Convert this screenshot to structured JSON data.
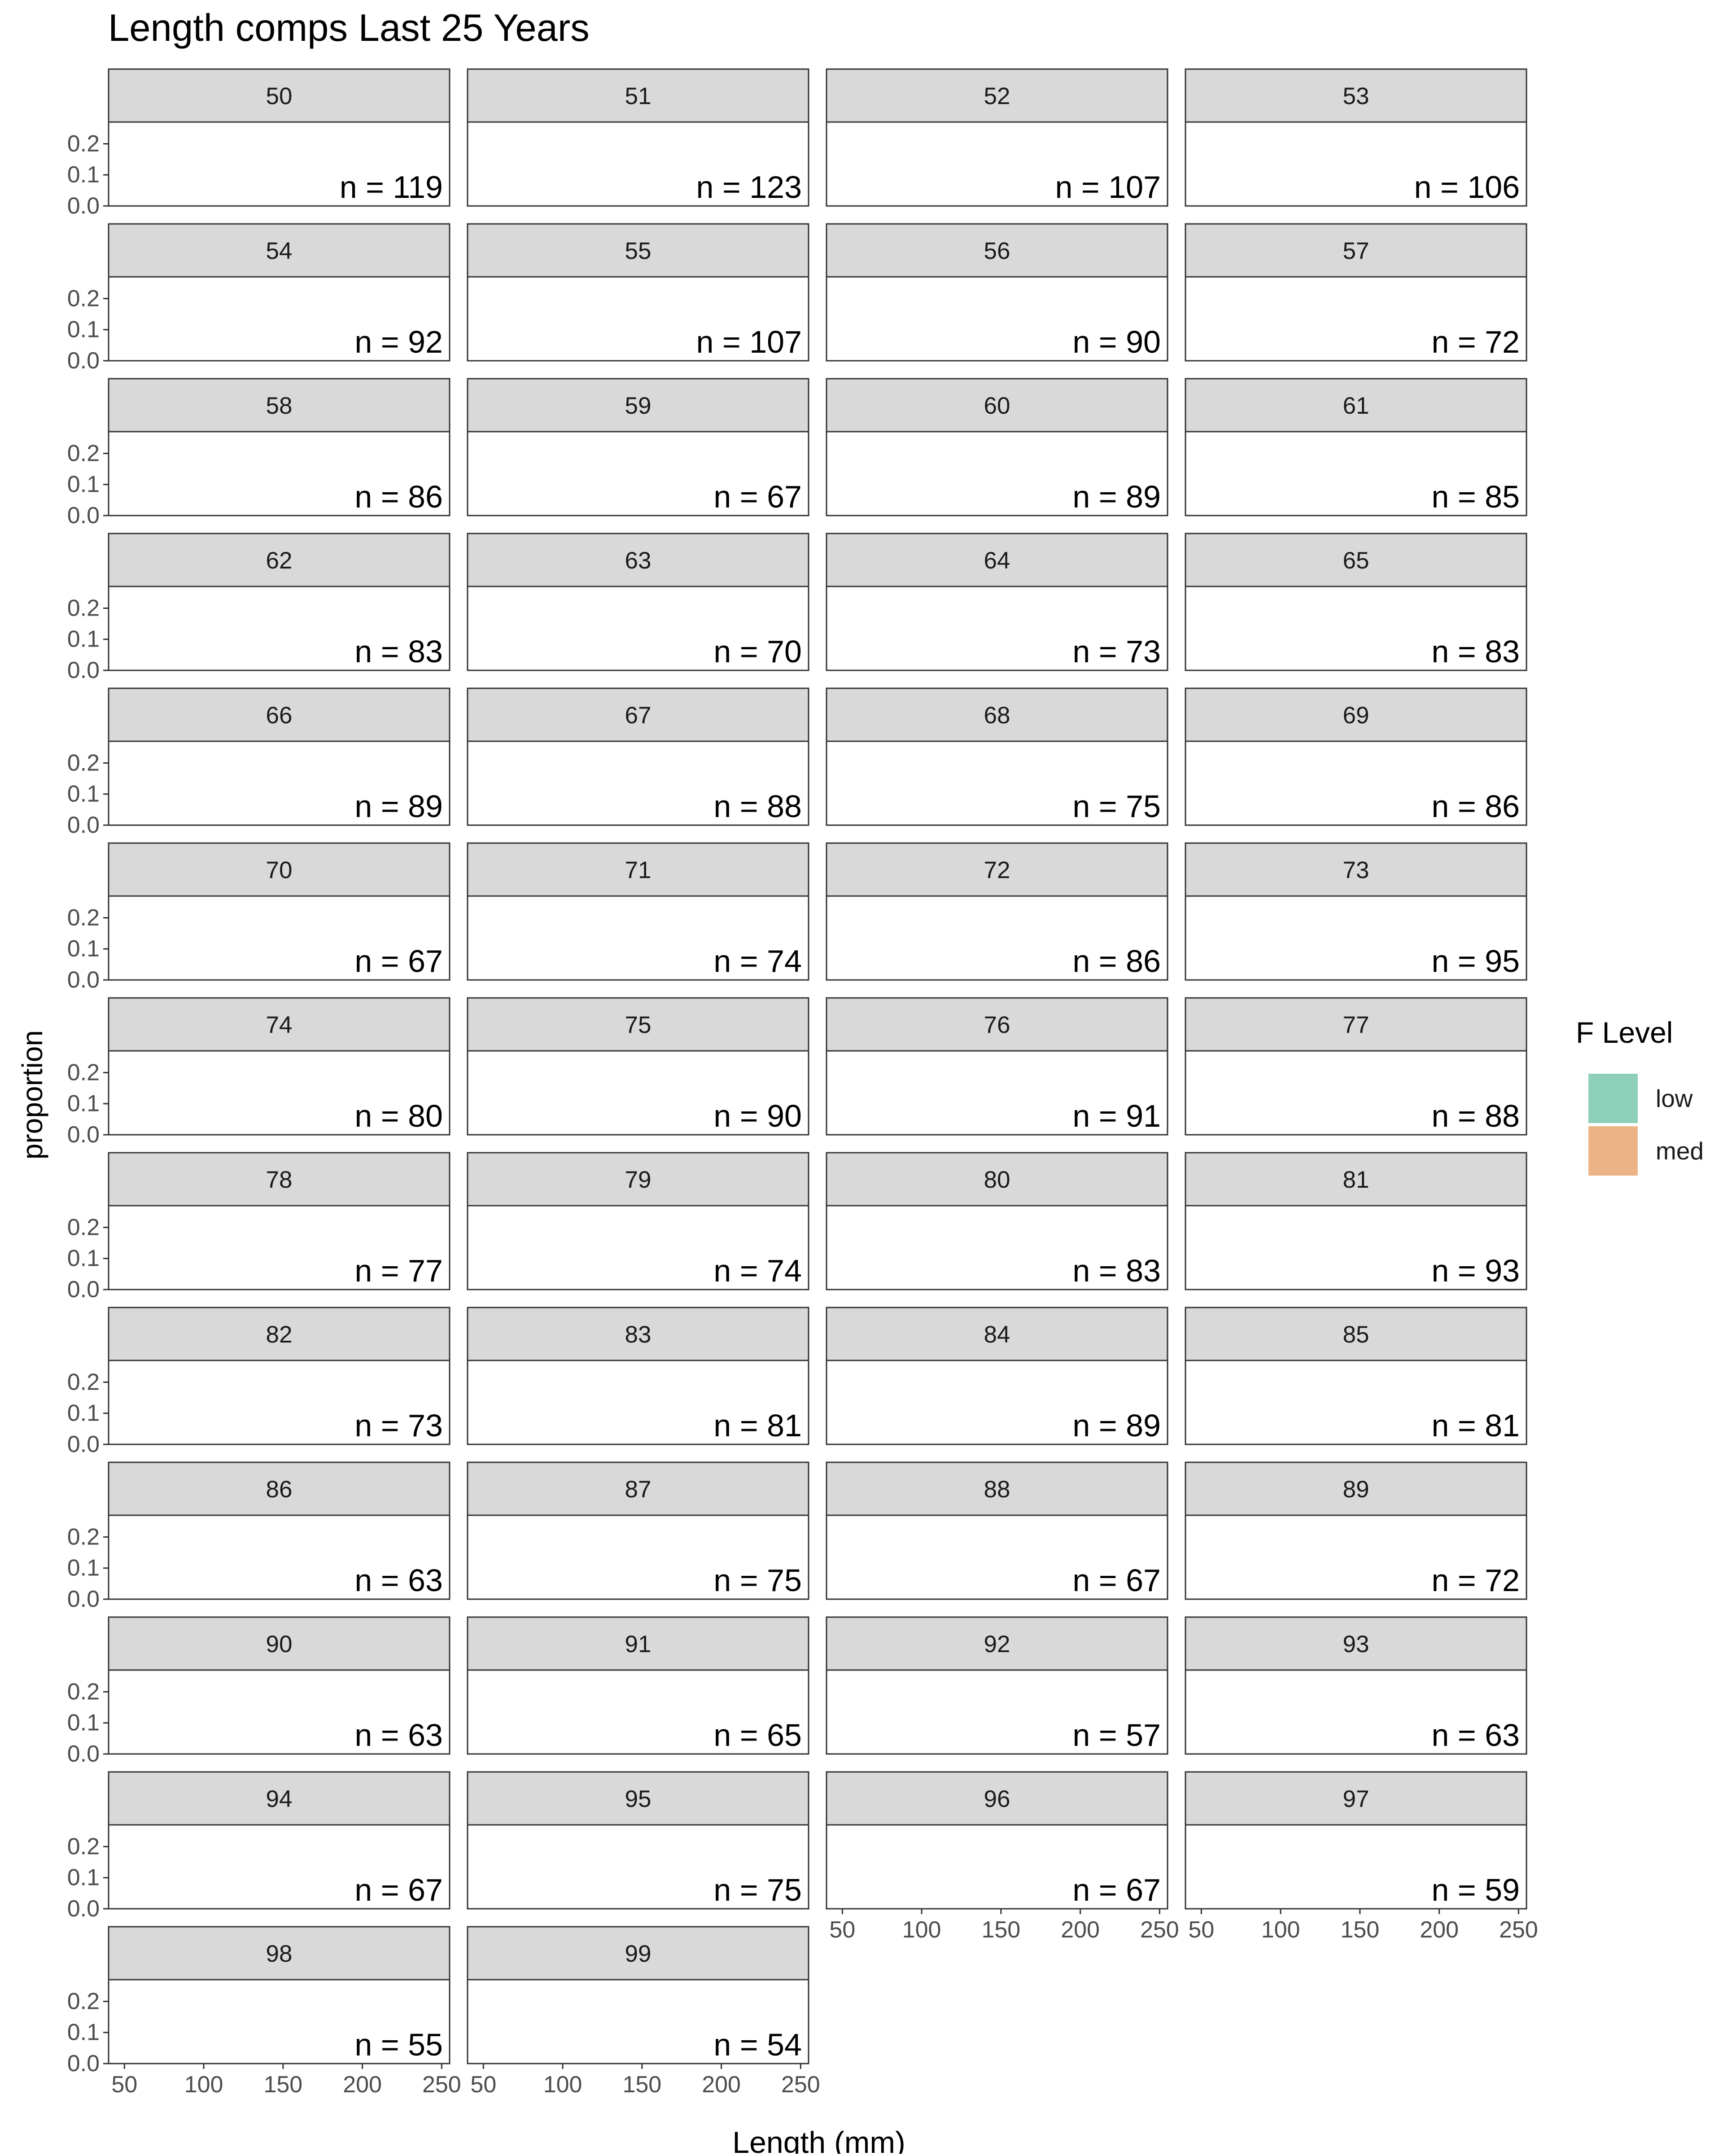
{
  "chart_data": {
    "type": "bar",
    "title": "Length comps Last 25 Years",
    "xlabel": "Length (mm)",
    "ylabel": "proportion",
    "x_ticks": [
      50,
      100,
      150,
      200,
      250
    ],
    "y_ticks": [
      "0.0",
      "0.1",
      "0.2"
    ],
    "xlim": [
      40,
      255
    ],
    "ylim": [
      0,
      0.27
    ],
    "legend": {
      "title": "F Level",
      "position": "right",
      "entries": [
        {
          "label": "low",
          "color": "#8ecfba"
        },
        {
          "label": "med",
          "color": "#ecb387"
        }
      ]
    },
    "grid": false,
    "ncol": 4,
    "facets": [
      {
        "label": "50",
        "n_label": "n = 119"
      },
      {
        "label": "51",
        "n_label": "n = 123"
      },
      {
        "label": "52",
        "n_label": "n = 107"
      },
      {
        "label": "53",
        "n_label": "n = 106"
      },
      {
        "label": "54",
        "n_label": "n = 92"
      },
      {
        "label": "55",
        "n_label": "n = 107"
      },
      {
        "label": "56",
        "n_label": "n = 90"
      },
      {
        "label": "57",
        "n_label": "n = 72"
      },
      {
        "label": "58",
        "n_label": "n = 86"
      },
      {
        "label": "59",
        "n_label": "n = 67"
      },
      {
        "label": "60",
        "n_label": "n = 89"
      },
      {
        "label": "61",
        "n_label": "n = 85"
      },
      {
        "label": "62",
        "n_label": "n = 83"
      },
      {
        "label": "63",
        "n_label": "n = 70"
      },
      {
        "label": "64",
        "n_label": "n = 73"
      },
      {
        "label": "65",
        "n_label": "n = 83"
      },
      {
        "label": "66",
        "n_label": "n = 89"
      },
      {
        "label": "67",
        "n_label": "n = 88"
      },
      {
        "label": "68",
        "n_label": "n = 75"
      },
      {
        "label": "69",
        "n_label": "n = 86"
      },
      {
        "label": "70",
        "n_label": "n = 67"
      },
      {
        "label": "71",
        "n_label": "n = 74"
      },
      {
        "label": "72",
        "n_label": "n = 86"
      },
      {
        "label": "73",
        "n_label": "n = 95"
      },
      {
        "label": "74",
        "n_label": "n = 80"
      },
      {
        "label": "75",
        "n_label": "n = 90"
      },
      {
        "label": "76",
        "n_label": "n = 91"
      },
      {
        "label": "77",
        "n_label": "n = 88"
      },
      {
        "label": "78",
        "n_label": "n = 77"
      },
      {
        "label": "79",
        "n_label": "n = 74"
      },
      {
        "label": "80",
        "n_label": "n = 83"
      },
      {
        "label": "81",
        "n_label": "n = 93"
      },
      {
        "label": "82",
        "n_label": "n = 73"
      },
      {
        "label": "83",
        "n_label": "n = 81"
      },
      {
        "label": "84",
        "n_label": "n = 89"
      },
      {
        "label": "85",
        "n_label": "n = 81"
      },
      {
        "label": "86",
        "n_label": "n = 63"
      },
      {
        "label": "87",
        "n_label": "n = 75"
      },
      {
        "label": "88",
        "n_label": "n = 67"
      },
      {
        "label": "89",
        "n_label": "n = 72"
      },
      {
        "label": "90",
        "n_label": "n = 63"
      },
      {
        "label": "91",
        "n_label": "n = 65"
      },
      {
        "label": "92",
        "n_label": "n = 57"
      },
      {
        "label": "93",
        "n_label": "n = 63"
      },
      {
        "label": "94",
        "n_label": "n = 67"
      },
      {
        "label": "95",
        "n_label": "n = 75"
      },
      {
        "label": "96",
        "n_label": "n = 67"
      },
      {
        "label": "97",
        "n_label": "n = 59"
      },
      {
        "label": "98",
        "n_label": "n = 55"
      },
      {
        "label": "99",
        "n_label": "n = 54"
      }
    ]
  }
}
